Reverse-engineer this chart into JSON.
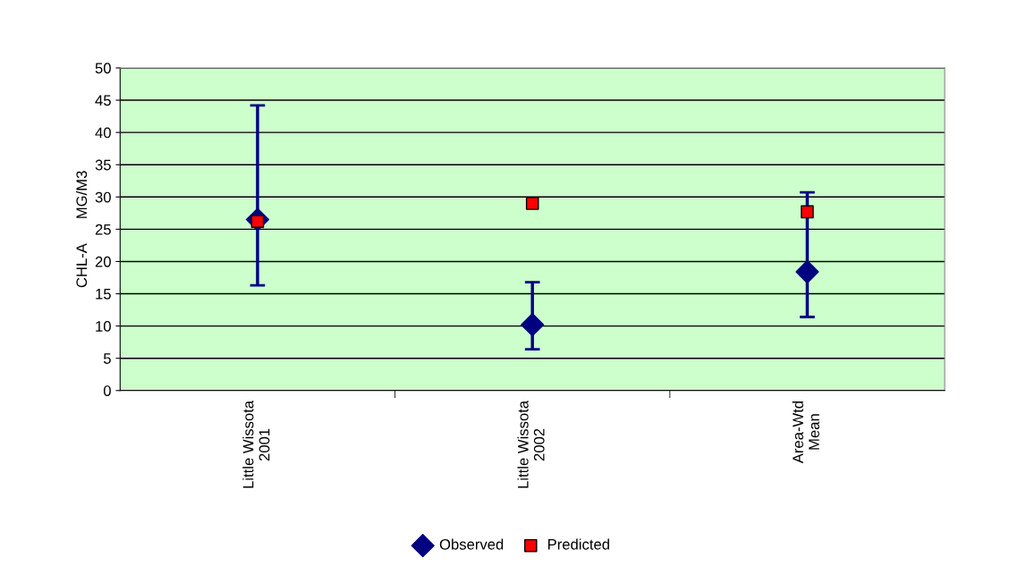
{
  "chart_data": {
    "type": "scatter",
    "ylabel": "CHL-A      MG/M3",
    "categories": [
      "Little Wissota\n2001",
      "Little Wissota\n2002",
      "Area-Wtd\nMean"
    ],
    "series": [
      {
        "name": "Observed",
        "color": "#000080",
        "marker": "diamond",
        "values": [
          26.5,
          10.2,
          18.4
        ],
        "errors": [
          [
            16.3,
            44.2
          ],
          [
            6.4,
            16.8
          ],
          [
            11.4,
            30.7
          ]
        ]
      },
      {
        "name": "Predicted",
        "color": "#ff0000",
        "marker": "square",
        "values": [
          26.2,
          29.0,
          27.7
        ]
      }
    ],
    "ylim": [
      0,
      50
    ],
    "yticks": [
      0,
      5,
      10,
      15,
      20,
      25,
      30,
      35,
      40,
      45,
      50
    ],
    "grid": "y",
    "legend": "bottom"
  }
}
